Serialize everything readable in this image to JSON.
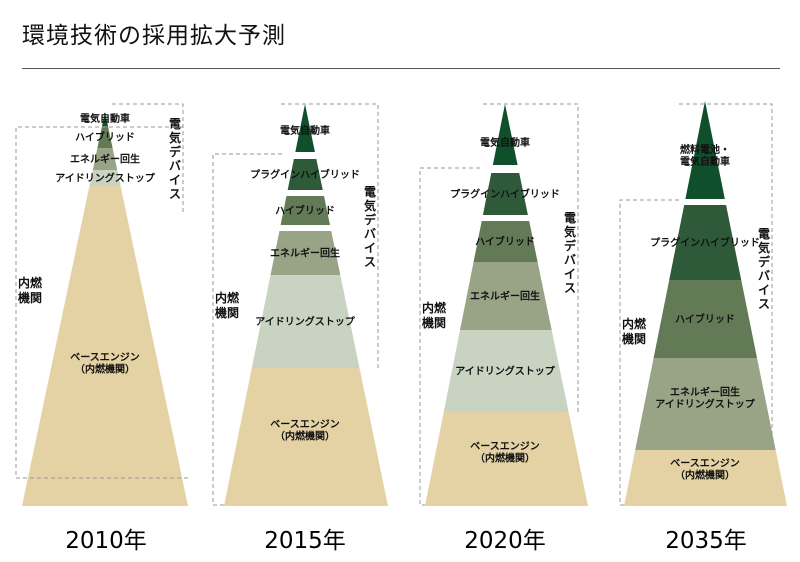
{
  "page": {
    "title": "環境技術の採用拡大予測"
  },
  "labels": {
    "electric_device": "電気デバイス",
    "ice": "内燃機関"
  },
  "colors": {
    "ev": "#0f4f2b",
    "phev": "#2f5a39",
    "hybrid": "#627a56",
    "energy_regen": "#99a386",
    "idling_stop": "#c9d3c1",
    "base_engine": "#e5d2a4",
    "bracket": "#9a9a9a"
  },
  "pyramids": [
    {
      "year": "2010年",
      "segments": [
        {
          "key": "ev",
          "label": "電気自動車",
          "share": 1.5
        },
        {
          "key": "hybrid",
          "label": "ハイブリッド",
          "share": 2
        },
        {
          "key": "energy_regen",
          "label": "エネルギー回生",
          "share": 2
        },
        {
          "key": "idling_stop",
          "label": "アイドリングストップ",
          "share": 2
        },
        {
          "key": "base_engine",
          "label": "ベースエンジン\n（内燃機関）",
          "share": 92.5
        }
      ]
    },
    {
      "year": "2015年",
      "segments": [
        {
          "key": "ev",
          "label": "電気自動車",
          "share": 2
        },
        {
          "key": "phev",
          "label": "プラグインハイブリッド",
          "share": 7
        },
        {
          "key": "hybrid",
          "label": "ハイブリッド",
          "share": 8
        },
        {
          "key": "energy_regen",
          "label": "エネルギー回生",
          "share": 8
        },
        {
          "key": "idling_stop",
          "label": "アイドリングストップ",
          "share": 28
        },
        {
          "key": "base_engine",
          "label": "ベースエンジン\n（内燃機関）",
          "share": 47
        }
      ]
    },
    {
      "year": "2020年",
      "segments": [
        {
          "key": "ev",
          "label": "電気自動車",
          "share": 5
        },
        {
          "key": "phev",
          "label": "プラグインハイブリッド",
          "share": 10
        },
        {
          "key": "hybrid",
          "label": "ハイブリッド",
          "share": 12
        },
        {
          "key": "energy_regen",
          "label": "エネルギー回生",
          "share": 21
        },
        {
          "key": "idling_stop",
          "label": "アイドリングストップ",
          "share": 32
        },
        {
          "key": "base_engine",
          "label": "ベースエンジン\n（内燃機関）",
          "share": 20
        }
      ]
    },
    {
      "year": "2035年",
      "segments": [
        {
          "key": "ev",
          "label": "燃料電池・\n電気自動車",
          "share": 5
        },
        {
          "key": "phev",
          "label": "プラグインハイブリッド",
          "share": 28
        },
        {
          "key": "hybrid",
          "label": "ハイブリッド",
          "share": 30
        },
        {
          "key": "energy_regen",
          "label": "エネルギー回生\n\nアイドリングストップ",
          "share": 32
        },
        {
          "key": "base_engine",
          "label": "ベースエンジン\n（内燃機関）",
          "share": 5
        }
      ]
    }
  ]
}
